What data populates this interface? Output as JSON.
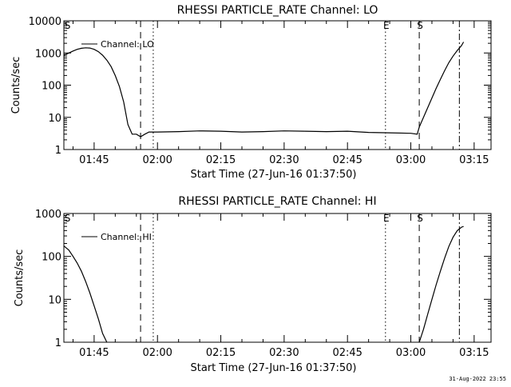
{
  "stamp": "31-Aug-2022 23:55",
  "chart_data": [
    {
      "type": "line",
      "title": "RHESSI PARTICLE_RATE Channel: LO",
      "xlabel": "Start Time (27-Jun-16 01:37:50)",
      "ylabel": "Counts/sec",
      "yscale": "log",
      "ylim": [
        1,
        10000
      ],
      "xlim": [
        "01:37:50",
        "03:19:00"
      ],
      "x_ticks": [
        "01:45",
        "02:00",
        "02:15",
        "02:30",
        "02:45",
        "03:00",
        "03:15"
      ],
      "y_ticks": [
        "1",
        "10",
        "100",
        "1000",
        "10000"
      ],
      "legend": "top-left",
      "series": [
        {
          "name": "Channel: LO",
          "x": [
            "01:37:50",
            "01:39:00",
            "01:40:00",
            "01:41:00",
            "01:42:00",
            "01:43:00",
            "01:44:00",
            "01:45:00",
            "01:46:00",
            "01:47:00",
            "01:48:00",
            "01:49:00",
            "01:50:00",
            "01:51:00",
            "01:52:00",
            "01:53:00",
            "01:54:00",
            "01:55:00",
            "01:56:00",
            "01:57:00",
            "01:58:00",
            "02:00:00",
            "02:05:00",
            "02:10:00",
            "02:15:00",
            "02:20:00",
            "02:25:00",
            "02:30:00",
            "02:35:00",
            "02:40:00",
            "02:45:00",
            "02:50:00",
            "02:55:00",
            "03:00:00",
            "03:01:30",
            "03:02:00",
            "03:03:00",
            "03:04:00",
            "03:05:00",
            "03:06:00",
            "03:07:00",
            "03:08:00",
            "03:09:00",
            "03:10:00",
            "03:11:00",
            "03:12:00",
            "03:12:30"
          ],
          "values": [
            850,
            1000,
            1150,
            1300,
            1400,
            1450,
            1420,
            1300,
            1100,
            850,
            600,
            380,
            200,
            90,
            30,
            6,
            3,
            3,
            2.5,
            3,
            3.5,
            3.5,
            3.6,
            3.8,
            3.7,
            3.5,
            3.6,
            3.8,
            3.7,
            3.6,
            3.7,
            3.4,
            3.3,
            3.2,
            3,
            5,
            10,
            20,
            40,
            80,
            150,
            280,
            500,
            800,
            1200,
            1700,
            2200
          ]
        }
      ],
      "markers": [
        {
          "label": "S",
          "time": "01:38:30",
          "style": "dashed",
          "show_line": false
        },
        {
          "label": "",
          "time": "01:56:00",
          "style": "dashed"
        },
        {
          "label": "",
          "time": "01:59:00",
          "style": "dotted"
        },
        {
          "label": "E",
          "time": "02:54:00",
          "style": "dotted"
        },
        {
          "label": "S",
          "time": "03:02:00",
          "style": "dashed"
        },
        {
          "label": "",
          "time": "03:11:30",
          "style": "dashdot"
        }
      ]
    },
    {
      "type": "line",
      "title": "RHESSI PARTICLE_RATE Channel: HI",
      "xlabel": "Start Time (27-Jun-16 01:37:50)",
      "ylabel": "Counts/sec",
      "yscale": "log",
      "ylim": [
        1,
        1000
      ],
      "xlim": [
        "01:37:50",
        "03:19:00"
      ],
      "x_ticks": [
        "01:45",
        "02:00",
        "02:15",
        "02:30",
        "02:45",
        "03:00",
        "03:15"
      ],
      "y_ticks": [
        "1",
        "10",
        "100",
        "1000"
      ],
      "legend": "top-left",
      "series": [
        {
          "name": "Channel: HI",
          "x": [
            "01:37:50",
            "01:39:00",
            "01:40:00",
            "01:41:00",
            "01:42:00",
            "01:43:00",
            "01:44:00",
            "01:45:00",
            "01:46:00",
            "01:47:00",
            "01:48:00",
            "03:02:00",
            "03:03:00",
            "03:04:00",
            "03:05:00",
            "03:06:00",
            "03:07:00",
            "03:08:00",
            "03:09:00",
            "03:10:00",
            "03:11:00",
            "03:12:00",
            "03:12:30"
          ],
          "values": [
            175,
            140,
            100,
            70,
            45,
            26,
            14,
            7,
            3.5,
            1.6,
            1,
            1,
            2,
            4.5,
            10,
            22,
            45,
            90,
            170,
            280,
            400,
            480,
            500
          ]
        }
      ],
      "markers": [
        {
          "label": "S",
          "time": "01:38:30",
          "style": "dashed",
          "show_line": false
        },
        {
          "label": "",
          "time": "01:56:00",
          "style": "dashed"
        },
        {
          "label": "",
          "time": "01:59:00",
          "style": "dotted"
        },
        {
          "label": "E",
          "time": "02:54:00",
          "style": "dotted"
        },
        {
          "label": "S",
          "time": "03:02:00",
          "style": "dashed"
        },
        {
          "label": "",
          "time": "03:11:30",
          "style": "dashdot"
        }
      ]
    }
  ]
}
